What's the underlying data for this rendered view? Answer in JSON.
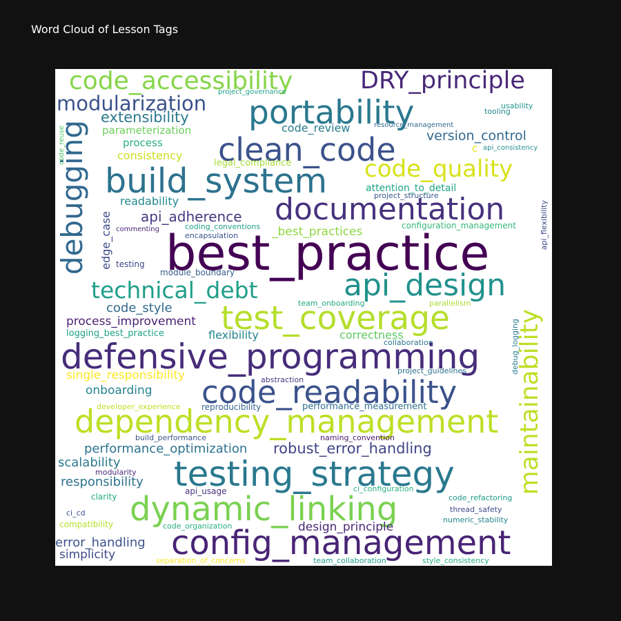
{
  "figure": {
    "title": "Word Cloud of Lesson Tags"
  },
  "chart_data": {
    "type": "word_cloud",
    "title": "Word Cloud of Lesson Tags",
    "colormap": "viridis",
    "words": [
      {
        "text": "best_practice",
        "color": "#440154"
      },
      {
        "text": "defensive_programming",
        "color": "#472c7a"
      },
      {
        "text": "dependency_management",
        "color": "#bddf26"
      },
      {
        "text": "testing_strategy",
        "color": "#2a788e"
      },
      {
        "text": "code_readability",
        "color": "#3b528b"
      },
      {
        "text": "config_management",
        "color": "#482475"
      },
      {
        "text": "dynamic_linking",
        "color": "#7ad151"
      },
      {
        "text": "build_system",
        "color": "#2c728e"
      },
      {
        "text": "test_coverage",
        "color": "#b5de2b"
      },
      {
        "text": "documentation",
        "color": "#46327e"
      },
      {
        "text": "api_design",
        "color": "#21918c"
      },
      {
        "text": "portability",
        "color": "#2a788e"
      },
      {
        "text": "clean_code",
        "color": "#3b528b"
      },
      {
        "text": "maintainability",
        "color": "#bddf26"
      },
      {
        "text": "debugging",
        "color": "#31688e"
      },
      {
        "text": "code_accessibility",
        "color": "#86d549"
      },
      {
        "text": "DRY_principle",
        "color": "#482878"
      },
      {
        "text": "technical_debt",
        "color": "#1f9e89"
      },
      {
        "text": "code_quality",
        "color": "#d8e219"
      },
      {
        "text": "modularization",
        "color": "#3b528b"
      },
      {
        "text": "robust_error_handling",
        "color": "#414487"
      },
      {
        "text": "performance_optimization",
        "color": "#2c728e"
      },
      {
        "text": "api_adherence",
        "color": "#443983"
      },
      {
        "text": "extensibility",
        "color": "#2a788e"
      },
      {
        "text": "version_control",
        "color": "#31688e"
      },
      {
        "text": "process_improvement",
        "color": "#481f70"
      },
      {
        "text": "design_principle",
        "color": "#482878"
      },
      {
        "text": "error_handling",
        "color": "#3b528b"
      },
      {
        "text": "single_responsibility",
        "color": "#fde725"
      },
      {
        "text": "code_style",
        "color": "#31688e"
      },
      {
        "text": "responsibility",
        "color": "#2c728e"
      },
      {
        "text": "scalability",
        "color": "#2a788e"
      },
      {
        "text": "onboarding",
        "color": "#26828e"
      },
      {
        "text": "flexibility",
        "color": "#25858e"
      },
      {
        "text": "correctness",
        "color": "#5ec962"
      },
      {
        "text": "_best_practices",
        "color": "#8fd744"
      },
      {
        "text": "simplicity",
        "color": "#3e4a89"
      },
      {
        "text": "consistency",
        "color": "#c8e020"
      },
      {
        "text": "readability",
        "color": "#23898e"
      },
      {
        "text": "code_review",
        "color": "#297b8e"
      },
      {
        "text": "parameterization",
        "color": "#6ccd5a"
      },
      {
        "text": "process",
        "color": "#28ae80"
      },
      {
        "text": "edge_case",
        "color": "#3e4a89"
      },
      {
        "text": "attention_to_detail",
        "color": "#20a386"
      },
      {
        "text": "c",
        "color": "#e5e419"
      },
      {
        "text": "logging_best_practice",
        "color": "#1fa187"
      },
      {
        "text": "legal_compliance",
        "color": "#a5db36"
      },
      {
        "text": "configuration_management",
        "color": "#35b779"
      },
      {
        "text": "performance_measurement",
        "color": "#2e6e8e"
      },
      {
        "text": "project_structure",
        "color": "#38588c"
      },
      {
        "text": "coding_conventions",
        "color": "#1fa187"
      },
      {
        "text": "encapsulation",
        "color": "#3b528b"
      },
      {
        "text": "module_boundary",
        "color": "#365c8d"
      },
      {
        "text": "testing",
        "color": "#3f4788"
      },
      {
        "text": "commenting",
        "color": "#482475"
      },
      {
        "text": "reproducibility",
        "color": "#34618d"
      },
      {
        "text": "abstraction",
        "color": "#453781"
      },
      {
        "text": "project_guidelines",
        "color": "#2d708e"
      },
      {
        "text": "collaboration",
        "color": "#2c728e"
      },
      {
        "text": "team_onboarding",
        "color": "#22a785"
      },
      {
        "text": "parallelism",
        "color": "#addc30"
      },
      {
        "text": "api_flexibility",
        "color": "#3f4788"
      },
      {
        "text": "debug_logging",
        "color": "#287c8e"
      },
      {
        "text": "developer_experience",
        "color": "#c0df25"
      },
      {
        "text": "build_performance",
        "color": "#3b528b"
      },
      {
        "text": "naming_convention",
        "color": "#48186a"
      },
      {
        "text": "modularity",
        "color": "#482878"
      },
      {
        "text": "clarity",
        "color": "#25ab82"
      },
      {
        "text": "api_usage",
        "color": "#46327e"
      },
      {
        "text": "ci_configuration",
        "color": "#2ab07f"
      },
      {
        "text": "code_refactoring",
        "color": "#1e9b8a"
      },
      {
        "text": "thread_safety",
        "color": "#3e4a89"
      },
      {
        "text": "numeric_stability",
        "color": "#25858e"
      },
      {
        "text": "ci_cd",
        "color": "#3a548c"
      },
      {
        "text": "compatibility",
        "color": "#b8de29"
      },
      {
        "text": "code_organization",
        "color": "#27ad81"
      },
      {
        "text": "separation_of_concerns",
        "color": "#fde725"
      },
      {
        "text": "team_collaboration",
        "color": "#1f9e89"
      },
      {
        "text": "style_consistency",
        "color": "#26ad81"
      },
      {
        "text": "project_governance",
        "color": "#1fa088"
      },
      {
        "text": "usability",
        "color": "#1f958b"
      },
      {
        "text": "tooling",
        "color": "#23898e"
      },
      {
        "text": "resource_management",
        "color": "#31688e"
      },
      {
        "text": "api_consistency",
        "color": "#21908d"
      },
      {
        "text": "code_reuse",
        "color": "#52c569"
      }
    ]
  }
}
